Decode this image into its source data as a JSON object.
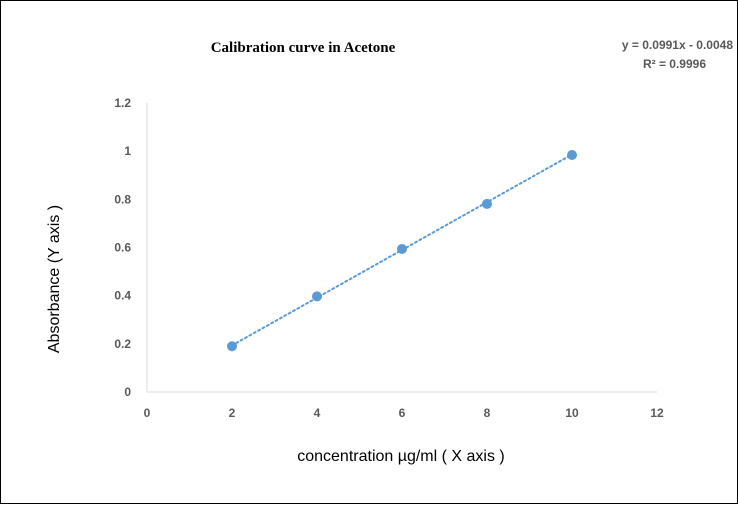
{
  "chart_data": {
    "type": "scatter",
    "title": "Calibration curve in Acetone",
    "xlabel": "concentration µg/ml ( X axis )",
    "ylabel": "Absorbance  (Y axis )",
    "xlim": [
      0,
      12
    ],
    "ylim": [
      0,
      1.2
    ],
    "x_ticks": [
      "0",
      "2",
      "4",
      "6",
      "8",
      "10",
      "12"
    ],
    "y_ticks": [
      "0",
      "0.2",
      "0.4",
      "0.6",
      "0.8",
      "1",
      "1.2"
    ],
    "grid": false,
    "series": [
      {
        "x": [
          2,
          4,
          6,
          8,
          10
        ],
        "y": [
          0.19,
          0.397,
          0.594,
          0.781,
          0.984
        ]
      }
    ],
    "trendline": {
      "type": "linear",
      "slope": 0.0991,
      "intercept": -0.0048,
      "style": "dotted"
    },
    "equation_text": "y = 0.0991x - 0.0048",
    "r2_text": "R² = 0.9996",
    "colors": {
      "marker": "#5B9BD5",
      "trendline": "#5B9BD5",
      "axis": "#D9D9D9",
      "tick_text": "#595959"
    }
  }
}
